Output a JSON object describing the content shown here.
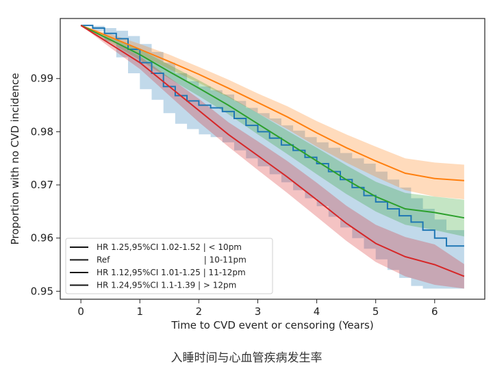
{
  "chart_data": {
    "type": "line",
    "title": "",
    "xlabel": "Time to CVD event or censoring (Years)",
    "ylabel": "Proportion with no CVD incidence",
    "xlim": [
      -0.35,
      6.85
    ],
    "ylim": [
      0.9485,
      1.0013
    ],
    "x_ticks": [
      0,
      1,
      2,
      3,
      4,
      5,
      6
    ],
    "x_tick_labels": [
      "0",
      "1",
      "2",
      "3",
      "4",
      "5",
      "6"
    ],
    "y_ticks": [
      0.95,
      0.96,
      0.97,
      0.98,
      0.99
    ],
    "y_tick_labels": [
      "0.95",
      "0.96",
      "0.97",
      "0.98",
      "0.99"
    ],
    "grid": false,
    "legend_position": "bottom-left",
    "series": [
      {
        "name": "HR 1.25,95%CI 1.02-1.52 | < 10pm",
        "color": "#1f77b4",
        "step": true,
        "x": [
          0,
          0.2,
          0.4,
          0.6,
          0.8,
          1.0,
          1.2,
          1.4,
          1.6,
          1.8,
          2.0,
          2.2,
          2.4,
          2.6,
          2.8,
          3.0,
          3.2,
          3.4,
          3.6,
          3.8,
          4.0,
          4.2,
          4.4,
          4.6,
          4.8,
          5.0,
          5.2,
          5.4,
          5.6,
          5.8,
          6.0,
          6.2,
          6.5
        ],
        "y": [
          1.0,
          0.9995,
          0.9985,
          0.9975,
          0.9955,
          0.993,
          0.991,
          0.9885,
          0.9868,
          0.9858,
          0.985,
          0.9845,
          0.9838,
          0.9825,
          0.9812,
          0.98,
          0.9788,
          0.9775,
          0.9765,
          0.9752,
          0.974,
          0.9725,
          0.971,
          0.9695,
          0.968,
          0.9668,
          0.9655,
          0.9642,
          0.963,
          0.9615,
          0.96,
          0.9585,
          0.9585
        ],
        "lower": [
          1.0,
          0.999,
          0.997,
          0.994,
          0.991,
          0.988,
          0.986,
          0.9835,
          0.9815,
          0.9805,
          0.9795,
          0.979,
          0.978,
          0.9765,
          0.975,
          0.9735,
          0.972,
          0.9705,
          0.969,
          0.9675,
          0.966,
          0.964,
          0.962,
          0.96,
          0.958,
          0.956,
          0.954,
          0.9525,
          0.951,
          0.9505,
          0.9505,
          0.9505,
          0.9505
        ],
        "upper": [
          1.0,
          0.9999,
          0.9995,
          0.999,
          0.998,
          0.9965,
          0.995,
          0.993,
          0.991,
          0.9895,
          0.9885,
          0.9878,
          0.987,
          0.9858,
          0.9845,
          0.9835,
          0.9825,
          0.9812,
          0.9802,
          0.979,
          0.978,
          0.977,
          0.976,
          0.975,
          0.974,
          0.9725,
          0.971,
          0.9695,
          0.9675,
          0.9655,
          0.9635,
          0.9615,
          0.9615
        ]
      },
      {
        "name": "Ref | 10-11pm",
        "color": "#ff7f0e",
        "step": false,
        "x": [
          0,
          0.5,
          1.0,
          1.5,
          2.0,
          2.5,
          3.0,
          3.5,
          4.0,
          4.5,
          5.0,
          5.5,
          6.0,
          6.5
        ],
        "y": [
          1.0,
          0.9978,
          0.9955,
          0.9932,
          0.9908,
          0.9882,
          0.9855,
          0.9828,
          0.9798,
          0.977,
          0.9745,
          0.9722,
          0.9712,
          0.9708
        ],
        "lower": [
          1.0,
          0.9972,
          0.9945,
          0.9918,
          0.9892,
          0.9865,
          0.9835,
          0.9805,
          0.9772,
          0.9742,
          0.9715,
          0.969,
          0.9678,
          0.9673
        ],
        "upper": [
          1.0,
          0.9984,
          0.9965,
          0.9945,
          0.9922,
          0.9898,
          0.9872,
          0.9848,
          0.982,
          0.9795,
          0.9772,
          0.975,
          0.9742,
          0.9738
        ]
      },
      {
        "name": "HR 1.12,95%CI 1.01-1.25 | 11-12pm",
        "color": "#2ca02c",
        "step": false,
        "x": [
          0,
          0.5,
          1.0,
          1.5,
          2.0,
          2.5,
          3.0,
          3.5,
          4.0,
          4.5,
          5.0,
          5.5,
          6.0,
          6.5
        ],
        "y": [
          1.0,
          0.9973,
          0.9945,
          0.9913,
          0.9882,
          0.985,
          0.9815,
          0.978,
          0.9745,
          0.971,
          0.9678,
          0.9655,
          0.9648,
          0.9638
        ],
        "lower": [
          1.0,
          0.9967,
          0.9935,
          0.99,
          0.9867,
          0.9833,
          0.9795,
          0.9758,
          0.972,
          0.9683,
          0.965,
          0.9625,
          0.9615,
          0.9603
        ],
        "upper": [
          1.0,
          0.9979,
          0.9955,
          0.9926,
          0.9897,
          0.9867,
          0.9835,
          0.9802,
          0.977,
          0.9737,
          0.9706,
          0.9685,
          0.9678,
          0.9672
        ]
      },
      {
        "name": "HR 1.24,95%CI 1.1-1.39 | > 12pm",
        "color": "#d62728",
        "step": false,
        "x": [
          0,
          0.5,
          1.0,
          1.5,
          2.0,
          2.5,
          3.0,
          3.5,
          4.0,
          4.5,
          5.0,
          5.5,
          6.0,
          6.5
        ],
        "y": [
          1.0,
          0.9965,
          0.993,
          0.9885,
          0.984,
          0.9795,
          0.9755,
          0.9715,
          0.9672,
          0.9628,
          0.959,
          0.9565,
          0.955,
          0.9528
        ],
        "lower": [
          1.0,
          0.9958,
          0.9918,
          0.9868,
          0.9818,
          0.9772,
          0.9728,
          0.9685,
          0.964,
          0.9595,
          0.9555,
          0.9528,
          0.9512,
          0.9505
        ],
        "upper": [
          1.0,
          0.9972,
          0.9942,
          0.9902,
          0.9862,
          0.9818,
          0.9782,
          0.9745,
          0.9704,
          0.9661,
          0.9625,
          0.9602,
          0.9588,
          0.9551
        ]
      }
    ]
  },
  "legend": {
    "entries": [
      "HR 1.25,95%CI 1.02-1.52 | < 10pm",
      "Ref                                    | 10-11pm",
      "HR 1.12,95%CI 1.01-1.25 | 11-12pm",
      "HR 1.24,95%CI 1.1-1.39 | > 12pm"
    ],
    "line_color": "#111111"
  },
  "caption": "入睡时间与心血管疾病发生率"
}
